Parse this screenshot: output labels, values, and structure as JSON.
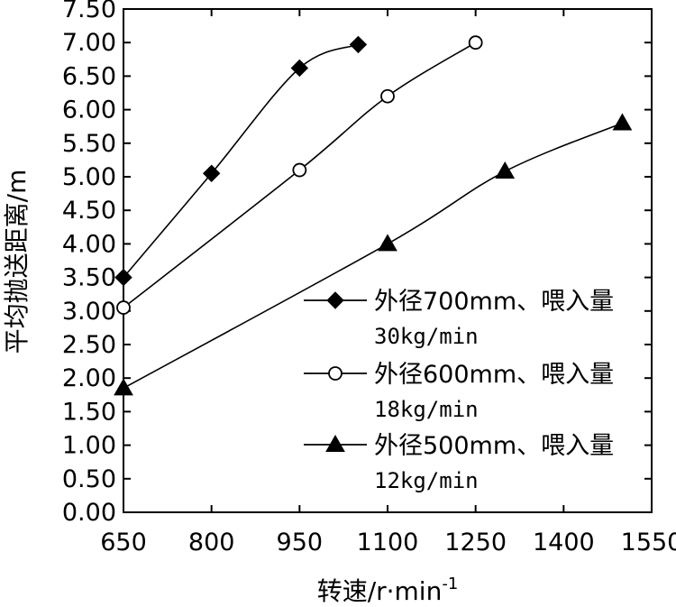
{
  "chart_data": {
    "type": "line",
    "xlabel": "转速/r·min",
    "xlabel_sup": "-1",
    "ylabel": "平均抛送距离/m",
    "xlim": [
      650,
      1550
    ],
    "ylim": [
      0,
      7.5
    ],
    "x_ticks": [
      "650",
      "800",
      "950",
      "1100",
      "1250",
      "1400",
      "1550"
    ],
    "y_ticks": [
      "0.00",
      "0.50",
      "1.00",
      "1.50",
      "2.00",
      "2.50",
      "3.00",
      "3.50",
      "4.00",
      "4.50",
      "5.00",
      "5.50",
      "6.00",
      "6.50",
      "7.00",
      "7.50"
    ],
    "grid": false,
    "legend_position": "bottom-right",
    "series": [
      {
        "name": "外径700mm、喂入量",
        "name_line2": "30kg/min",
        "marker": "diamond-filled",
        "x": [
          650,
          800,
          950,
          1050
        ],
        "y": [
          3.5,
          5.05,
          6.62,
          6.97
        ]
      },
      {
        "name": "外径600mm、喂入量",
        "name_line2": "18kg/min",
        "marker": "circle-open",
        "x": [
          650,
          950,
          1100,
          1250
        ],
        "y": [
          3.05,
          5.1,
          6.2,
          7.0
        ]
      },
      {
        "name": "外径500mm、喂入量",
        "name_line2": "12kg/min",
        "marker": "triangle-filled",
        "x": [
          650,
          1100,
          1300,
          1500
        ],
        "y": [
          1.85,
          4.0,
          5.08,
          5.8
        ]
      }
    ]
  }
}
